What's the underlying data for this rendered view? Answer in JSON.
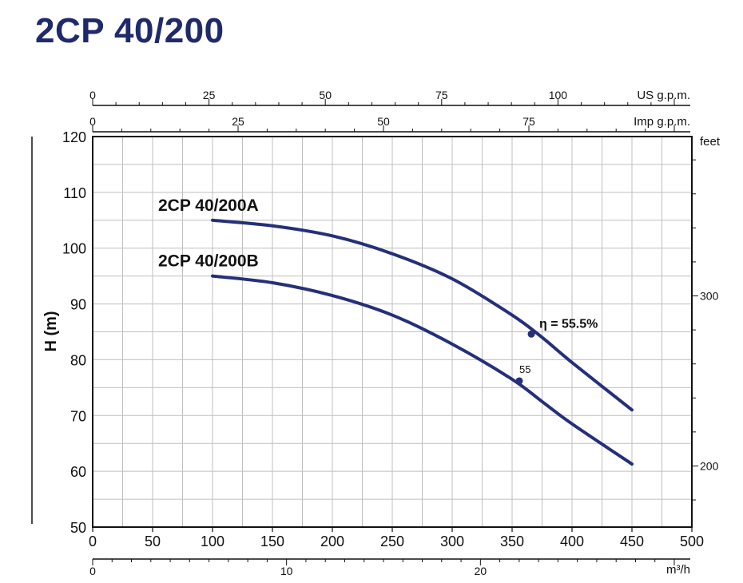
{
  "title": "2CP 40/200",
  "colors": {
    "curve": "#24307a",
    "grid": "#bfbfbf",
    "title": "#1f2a6b"
  },
  "chart_data": {
    "type": "line",
    "xlabel": "",
    "ylabel": "H (m)",
    "xlim": [
      0,
      500
    ],
    "ylim": [
      50,
      120
    ],
    "x_ticks": [
      "0",
      "50",
      "100",
      "150",
      "200",
      "250",
      "300",
      "350",
      "400",
      "450",
      "500"
    ],
    "y_ticks": [
      "50",
      "60",
      "70",
      "80",
      "90",
      "100",
      "110",
      "120"
    ],
    "grid": true,
    "series": [
      {
        "name": "2CP 40/200A",
        "points": [
          [
            100,
            105
          ],
          [
            150,
            104
          ],
          [
            200,
            102.2
          ],
          [
            250,
            99
          ],
          [
            300,
            94.5
          ],
          [
            350,
            88
          ],
          [
            375,
            84
          ],
          [
            400,
            79.5
          ],
          [
            450,
            71
          ]
        ]
      },
      {
        "name": "2CP 40/200B",
        "points": [
          [
            100,
            95
          ],
          [
            150,
            93.8
          ],
          [
            200,
            91.5
          ],
          [
            250,
            88
          ],
          [
            300,
            82.8
          ],
          [
            350,
            76.5
          ],
          [
            375,
            72.5
          ],
          [
            400,
            68.5
          ],
          [
            450,
            61.3
          ]
        ]
      }
    ],
    "annotations": [
      {
        "text": "η = 55.5%",
        "x": 366,
        "y": 84.6,
        "series": "2CP 40/200A"
      },
      {
        "text": "55",
        "x": 356,
        "y": 76.2,
        "series": "2CP 40/200B"
      }
    ],
    "top_axis_us": {
      "label": "US g.p.m.",
      "ticks": [
        "0",
        "25",
        "50",
        "75",
        "100"
      ],
      "max": 125
    },
    "top_axis_imp": {
      "label": "Imp g.p.m.",
      "ticks": [
        "0",
        "25",
        "50",
        "75"
      ],
      "max": 100
    },
    "right_axis": {
      "label": "feet",
      "ticks": [
        "300",
        "200"
      ]
    },
    "bottom_axis_m3h": {
      "label": "m³/h",
      "ticks": [
        "0",
        "10",
        "20"
      ],
      "max": 30
    }
  }
}
